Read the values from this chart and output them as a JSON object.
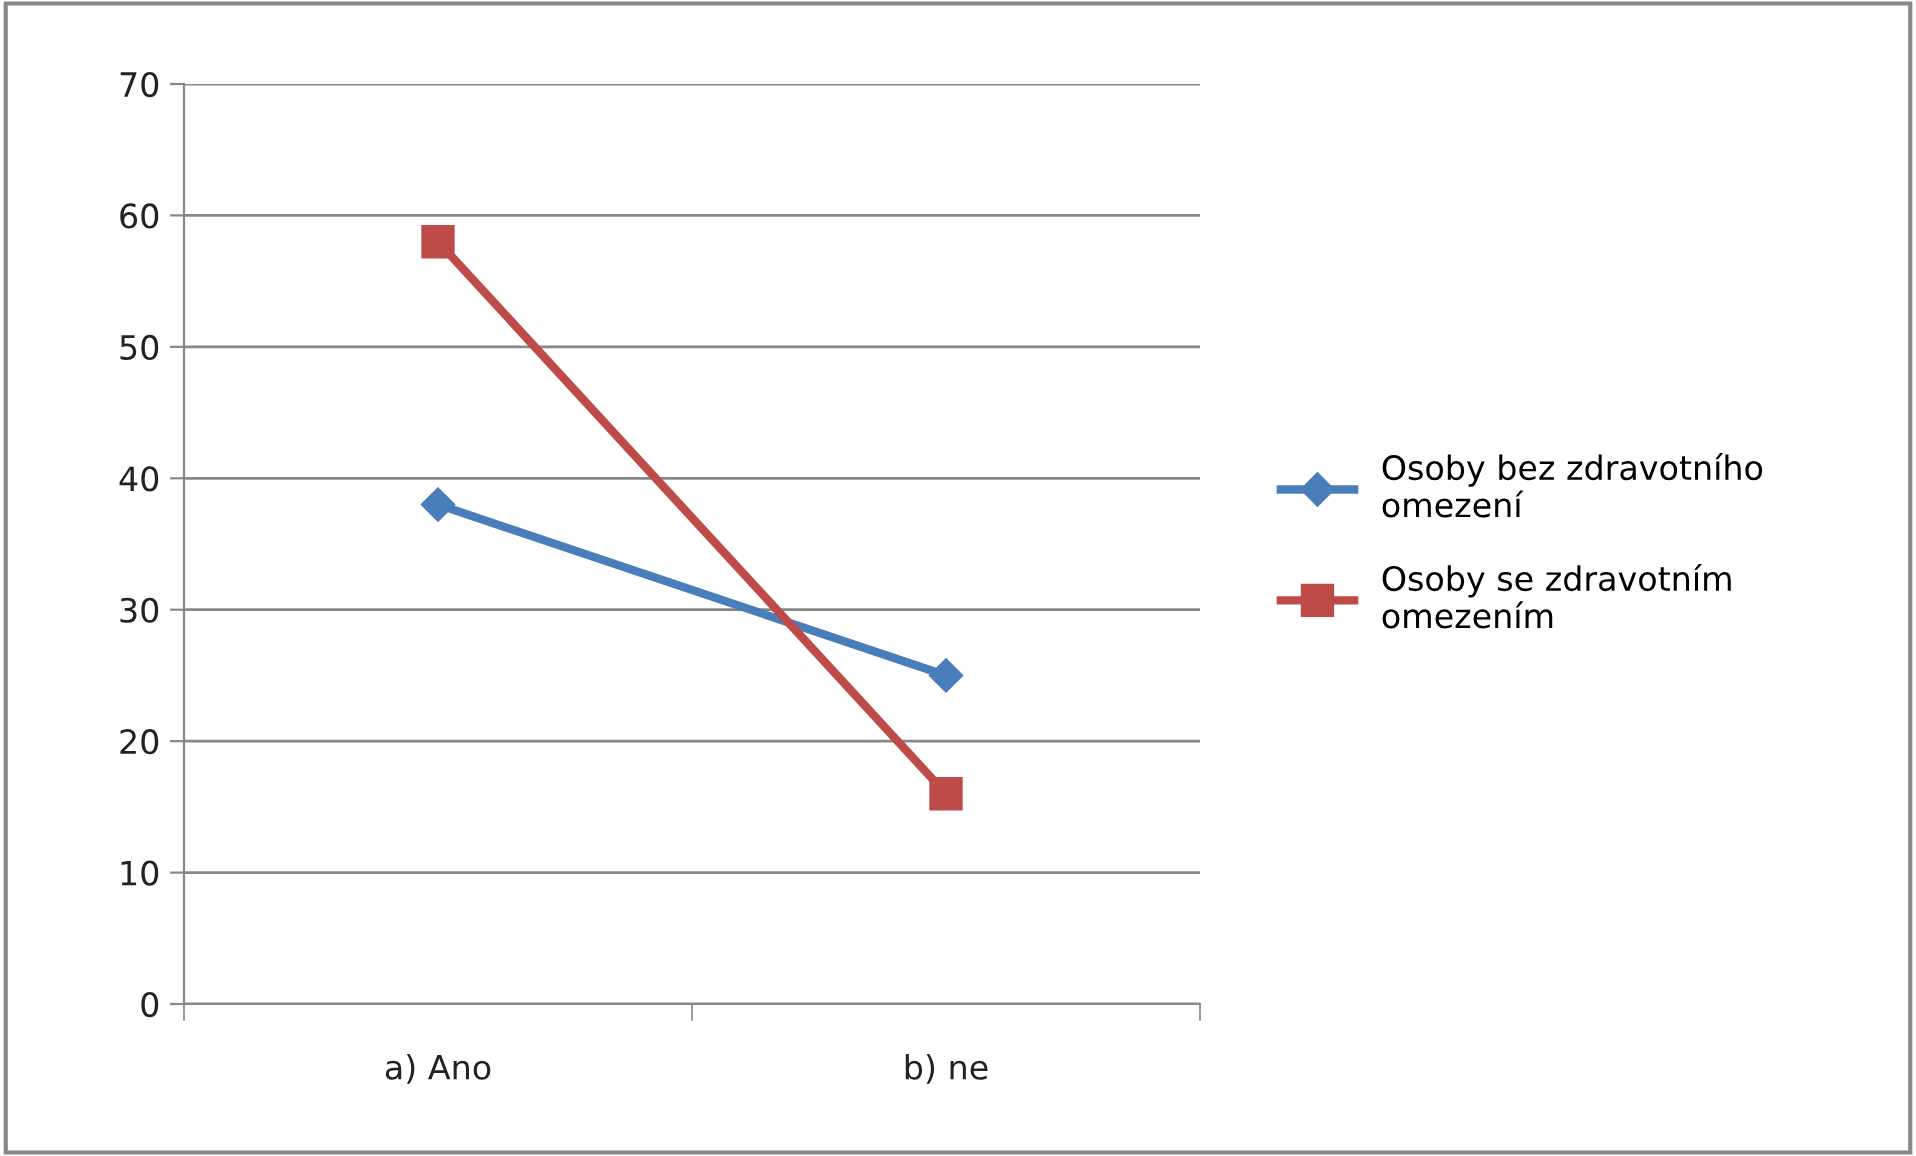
{
  "chart_data": {
    "type": "line",
    "categories": [
      "a) Ano",
      "b) ne"
    ],
    "series": [
      {
        "name": "Osoby bez zdravotního omezení",
        "color": "#4a7ebb",
        "values": [
          38,
          25
        ],
        "marker": "diamond"
      },
      {
        "name": "Osoby se zdravotním omezením",
        "color": "#be4b48",
        "values": [
          58,
          16
        ],
        "marker": "square"
      }
    ],
    "ylim": [
      0,
      70
    ],
    "yticks": [
      0,
      10,
      20,
      30,
      40,
      50,
      60,
      70
    ],
    "grid": "y",
    "legend": "right"
  }
}
